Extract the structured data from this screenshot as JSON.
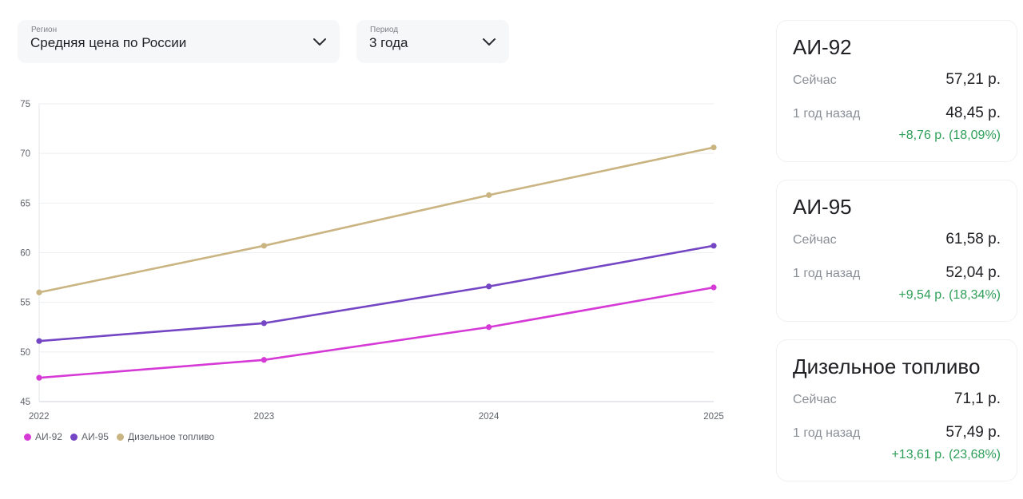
{
  "filters": {
    "region": {
      "caption": "Регион",
      "value": "Средняя цена по России"
    },
    "period": {
      "caption": "Период",
      "value": "3 года"
    }
  },
  "chart_data": {
    "type": "line",
    "x": [
      "2022",
      "2023",
      "2024",
      "2025"
    ],
    "ylim": [
      45,
      75
    ],
    "yticks": [
      45,
      50,
      55,
      60,
      65,
      70,
      75
    ],
    "grid": true,
    "legend_position": "bottom-left",
    "series": [
      {
        "name": "АИ-92",
        "color": "#d63ad6",
        "values": [
          47.4,
          49.2,
          52.5,
          56.5
        ]
      },
      {
        "name": "АИ-95",
        "color": "#7446c4",
        "values": [
          51.1,
          52.9,
          56.6,
          60.7
        ]
      },
      {
        "name": "Дизельное топливо",
        "color": "#c9b482",
        "values": [
          56.0,
          60.7,
          65.8,
          70.6
        ]
      }
    ]
  },
  "cards": [
    {
      "title": "АИ-92",
      "now_label": "Сейчас",
      "now": "57,21 р.",
      "ago_label": "1 год назад",
      "ago": "48,45 р.",
      "diff": "+8,76 р. (18,09%)"
    },
    {
      "title": "АИ-95",
      "now_label": "Сейчас",
      "now": "61,58 р.",
      "ago_label": "1 год назад",
      "ago": "52,04 р.",
      "diff": "+9,54 р. (18,34%)"
    },
    {
      "title": "Дизельное топливо",
      "now_label": "Сейчас",
      "now": "71,1 р.",
      "ago_label": "1 год назад",
      "ago": "57,49 р.",
      "diff": "+13,61 р. (23,68%)"
    }
  ],
  "colors": {
    "positive": "#2e9e58",
    "panel": "#f6f7f9"
  }
}
